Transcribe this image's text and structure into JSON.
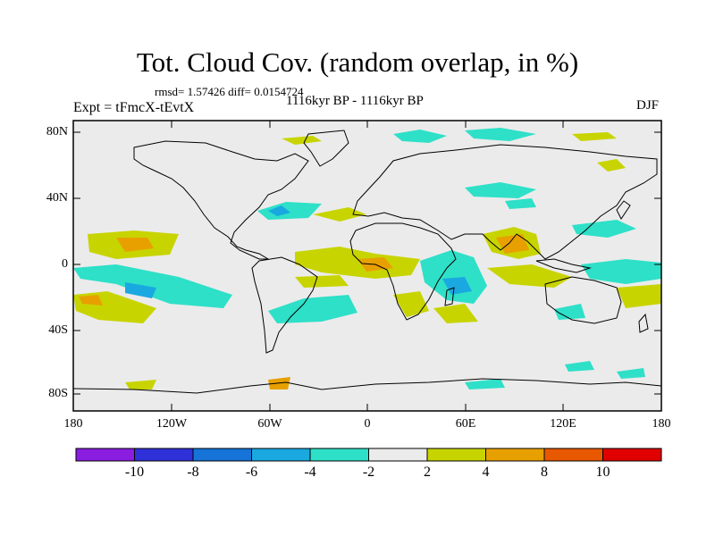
{
  "title": "Tot. Cloud Cov. (random overlap, in %)",
  "stats_line": "rmsd= 1.57426 diff= 0.0154724",
  "experiment": "Expt = tFmcX-tEvtX",
  "period": "1116kyr BP - 1116kyr BP",
  "season": "DJF",
  "lat_labels": [
    "80N",
    "40N",
    "0",
    "40S",
    "80S"
  ],
  "lon_labels": [
    "180",
    "120W",
    "60W",
    "0",
    "60E",
    "120E",
    "180"
  ],
  "colorbar": {
    "labels": [
      "-10",
      "-8",
      "-6",
      "-4",
      "-2",
      "2",
      "4",
      "8",
      "10"
    ],
    "colors": [
      "#8a1de0",
      "#3030d8",
      "#1673d8",
      "#1aa8e0",
      "#2ee0c8",
      "#ebebeb",
      "#c8d400",
      "#e8a000",
      "#e85800",
      "#e00000"
    ]
  },
  "colors": {
    "land_outline": "#000000",
    "ocean_neutral": "#ebebeb"
  }
}
